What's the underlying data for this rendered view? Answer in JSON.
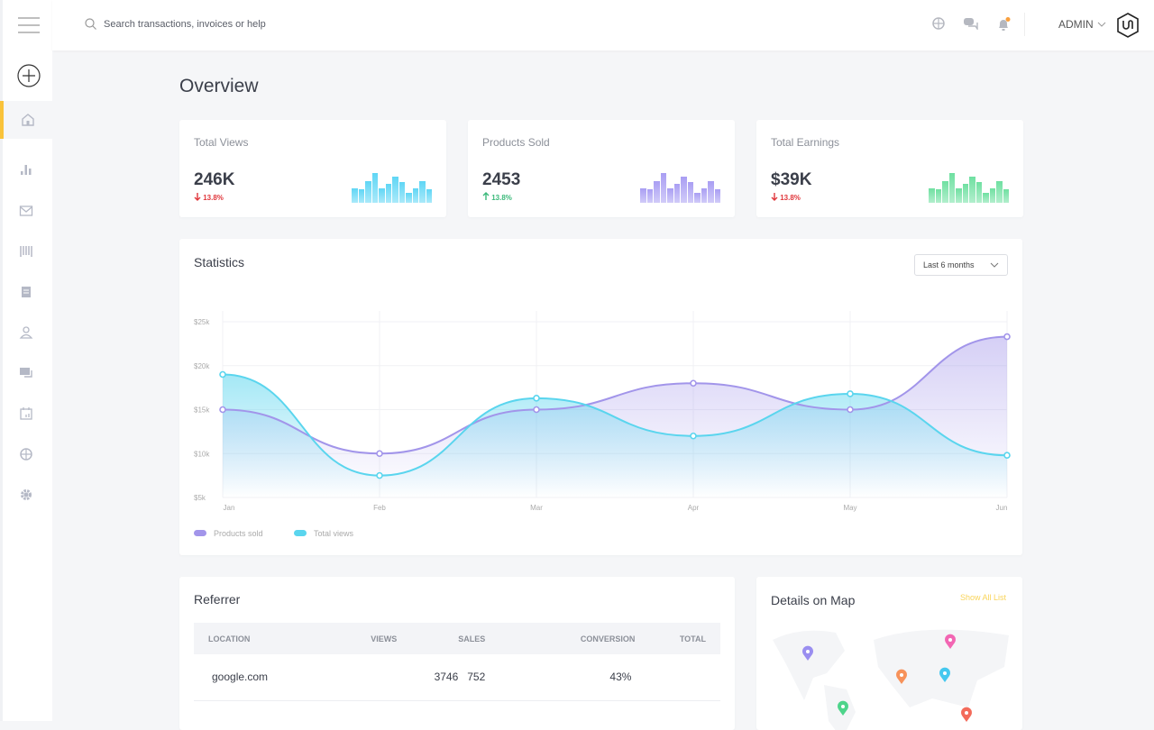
{
  "header": {
    "search_placeholder": "Search transactions, invoices or help",
    "user": "ADMIN",
    "notification_dot_color": "#f9a03f"
  },
  "sidebar": {
    "items": [
      "home-icon",
      "bar-chart-icon",
      "mail-icon",
      "barcode-icon",
      "document-icon",
      "user-icon",
      "chat-icon",
      "calendar-icon",
      "globe-icon",
      "gear-icon"
    ],
    "active": "home",
    "accent": "#f9c33a"
  },
  "page": {
    "title": "Overview"
  },
  "stats": [
    {
      "label": "Total Views",
      "value": "246K",
      "change": "13.8%",
      "direction": "down",
      "color": "#5fd6f5"
    },
    {
      "label": "Products Sold",
      "value": "2453",
      "change": "13.8%",
      "direction": "up",
      "color": "#a99ef3"
    },
    {
      "label": "Total Earnings",
      "value": "$39K",
      "change": "13.8%",
      "direction": "down",
      "color": "#6fe0a1"
    }
  ],
  "mini_bars": [
    48,
    44,
    72,
    97,
    48,
    61,
    85,
    68,
    32,
    48,
    72,
    44
  ],
  "statistics": {
    "title": "Statistics",
    "range": "Last 6 months",
    "chart_data": {
      "type": "area",
      "categories": [
        "Jan",
        "Feb",
        "Mar",
        "Apr",
        "May",
        "Jun"
      ],
      "yticks": [
        "$5k",
        "$10k",
        "$15k",
        "$20k",
        "$25k"
      ],
      "ylim": [
        5,
        25
      ],
      "series": [
        {
          "name": "Products sold",
          "values": [
            15,
            10,
            15,
            18,
            15,
            23.3
          ],
          "color": "#a295ea"
        },
        {
          "name": "Total views",
          "values": [
            19,
            7.5,
            16.3,
            12,
            16.8,
            9.8
          ],
          "color": "#5ad5ee"
        }
      ],
      "grid": true,
      "legend": "bottom-left"
    }
  },
  "referrer": {
    "title": "Referrer",
    "columns": [
      "LOCATION",
      "VIEWS",
      "SALES",
      "CONVERSION",
      "TOTAL"
    ],
    "rows": [
      [
        "google.com",
        "3746",
        "752",
        "43%",
        ""
      ]
    ]
  },
  "map": {
    "title": "Details on Map",
    "link": "Show All List",
    "pins": [
      "#9a8ef0",
      "#f266b3",
      "#f7925a",
      "#45c8ef",
      "#4dd48a",
      "#f36b5b"
    ]
  }
}
